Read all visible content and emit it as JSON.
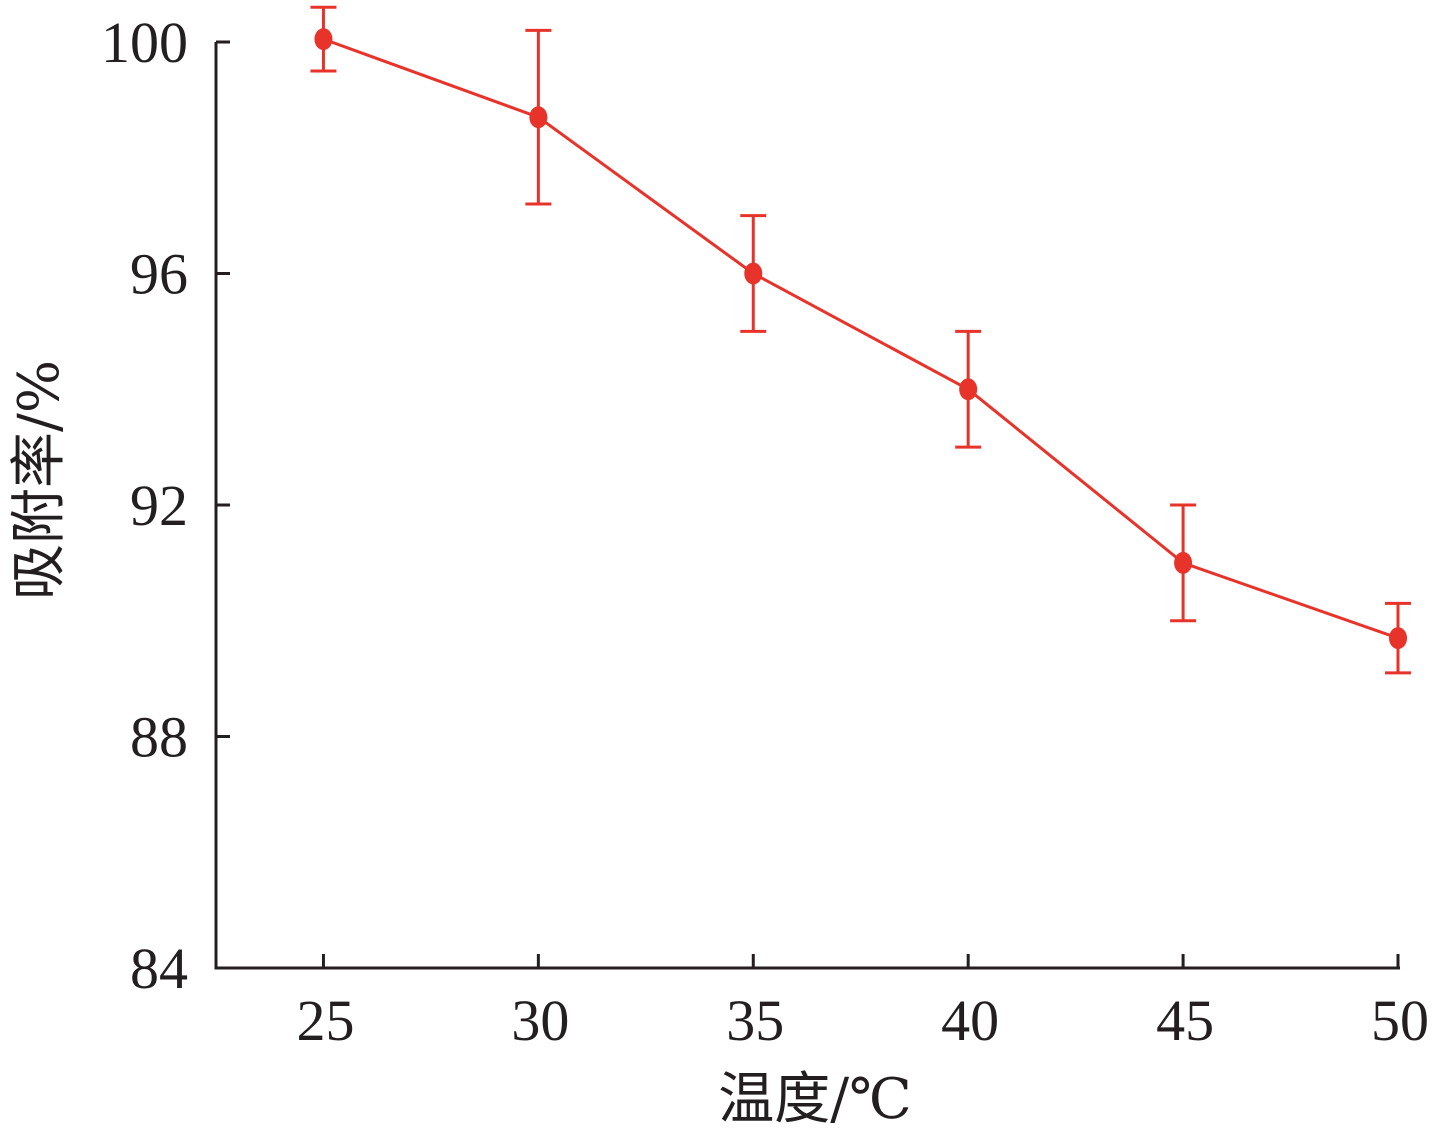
{
  "chart_data": {
    "type": "line",
    "title": "",
    "xlabel": "温度/℃",
    "ylabel": "吸附率/%",
    "x": [
      25,
      30,
      35,
      40,
      45,
      50
    ],
    "series": [
      {
        "values": [
          100.05,
          98.7,
          96.0,
          94.0,
          91.0,
          89.7
        ],
        "error": [
          0.55,
          1.5,
          1.0,
          1.0,
          1.0,
          0.6
        ],
        "color": "#e8332a"
      }
    ],
    "xticks": [
      "25",
      "30",
      "35",
      "40",
      "45",
      "50"
    ],
    "yticks": [
      "84",
      "88",
      "92",
      "96",
      "100"
    ],
    "xlim": [
      22.5,
      50
    ],
    "ylim": [
      84,
      100
    ],
    "grid": false,
    "legend": "none"
  },
  "colors": {
    "axis": "#231f20",
    "series": "#e8332a"
  }
}
